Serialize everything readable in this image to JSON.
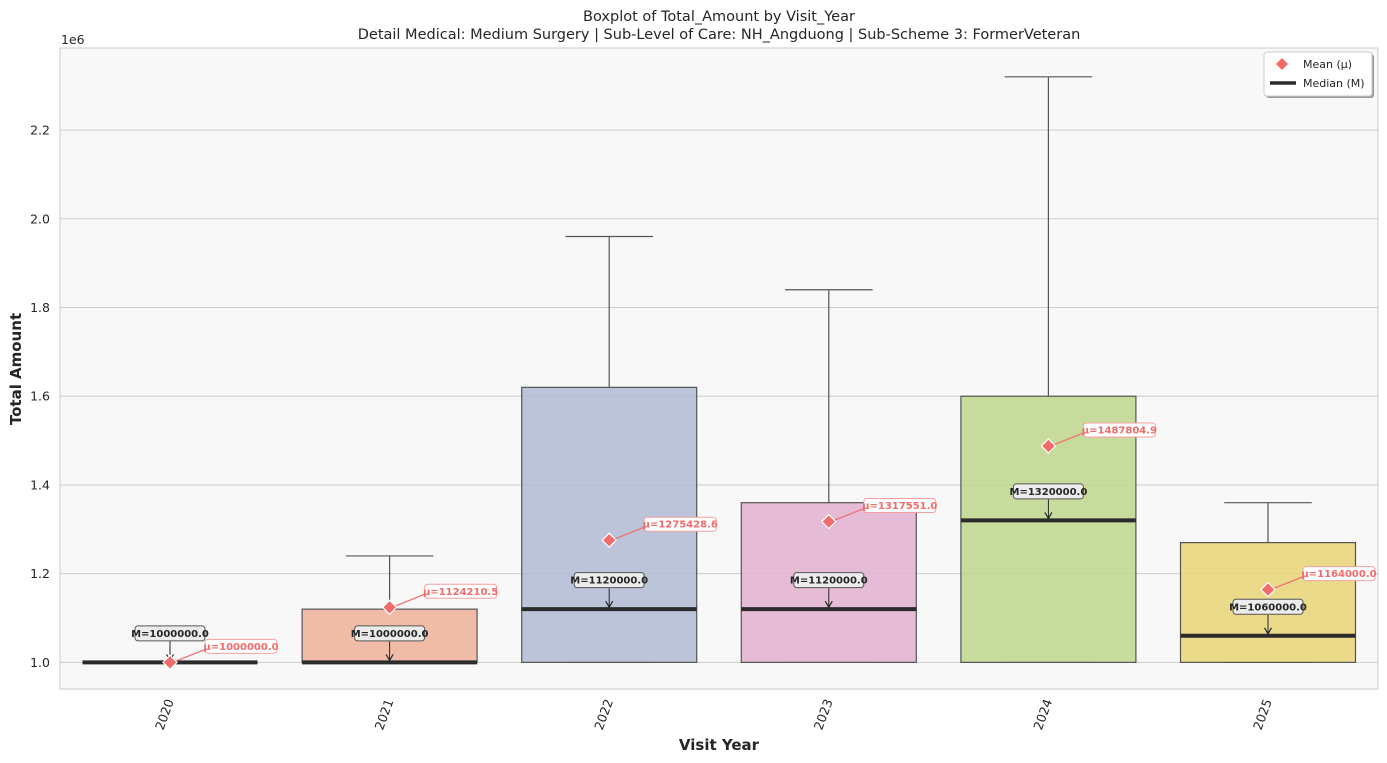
{
  "chart_data": {
    "type": "box",
    "title": "Boxplot of Total_Amount by Visit_Year",
    "subtitle": "Detail Medical: Medium Surgery | Sub-Level of Care: NH_Angduong | Sub-Scheme 3: FormerVeteran",
    "xlabel": "Visit Year",
    "ylabel": "Total Amount",
    "y_offset_label": "1e6",
    "ylim": [
      0.94,
      2.385
    ],
    "yticks": [
      1.0,
      1.2,
      1.4,
      1.6,
      1.8,
      2.0,
      2.2
    ],
    "ytick_labels": [
      "1.0",
      "1.2",
      "1.4",
      "1.6",
      "1.8",
      "2.0",
      "2.2"
    ],
    "grid": "horizontal",
    "legend_position": "top-right",
    "legend": [
      {
        "label": "Mean (μ)",
        "marker": "diamond",
        "color": "#f26b6b"
      },
      {
        "label": "Median (M)",
        "marker": "line",
        "color": "#2b2b2b"
      }
    ],
    "categories": [
      "2020",
      "2021",
      "2022",
      "2023",
      "2024",
      "2025"
    ],
    "boxes": [
      {
        "category": "2020",
        "whisker_low": 1.0,
        "q1": 1.0,
        "median": 1.0,
        "q3": 1.0,
        "whisker_high": 1.0,
        "mean": 1.0,
        "color": "#8dd3c7",
        "median_label": "M=1000000.0",
        "mean_label": "μ=1000000.0"
      },
      {
        "category": "2021",
        "whisker_low": 1.0,
        "q1": 1.0,
        "median": 1.0,
        "q3": 1.12,
        "whisker_high": 1.24,
        "mean": 1.1242105,
        "color": "#eeb29a",
        "median_label": "M=1000000.0",
        "mean_label": "μ=1124210.5"
      },
      {
        "category": "2022",
        "whisker_low": 1.0,
        "q1": 1.0,
        "median": 1.12,
        "q3": 1.62,
        "whisker_high": 1.96,
        "mean": 1.2754286,
        "color": "#b0bbd4",
        "median_label": "M=1120000.0",
        "mean_label": "μ=1275428.6"
      },
      {
        "category": "2023",
        "whisker_low": 1.0,
        "q1": 1.0,
        "median": 1.12,
        "q3": 1.36,
        "whisker_high": 1.84,
        "mean": 1.317551,
        "color": "#e3b0cf",
        "median_label": "M=1120000.0",
        "mean_label": "μ=1317551.0"
      },
      {
        "category": "2024",
        "whisker_low": 1.0,
        "q1": 1.0,
        "median": 1.32,
        "q3": 1.6,
        "whisker_high": 2.32,
        "mean": 1.4878049,
        "color": "#bdd68c",
        "median_label": "M=1320000.0",
        "mean_label": "μ=1487804.9"
      },
      {
        "category": "2025",
        "whisker_low": 1.0,
        "q1": 1.0,
        "median": 1.06,
        "q3": 1.27,
        "whisker_high": 1.36,
        "mean": 1.164,
        "color": "#e8d577",
        "median_label": "M=1060000.0",
        "mean_label": "μ=1164000.0"
      }
    ]
  }
}
